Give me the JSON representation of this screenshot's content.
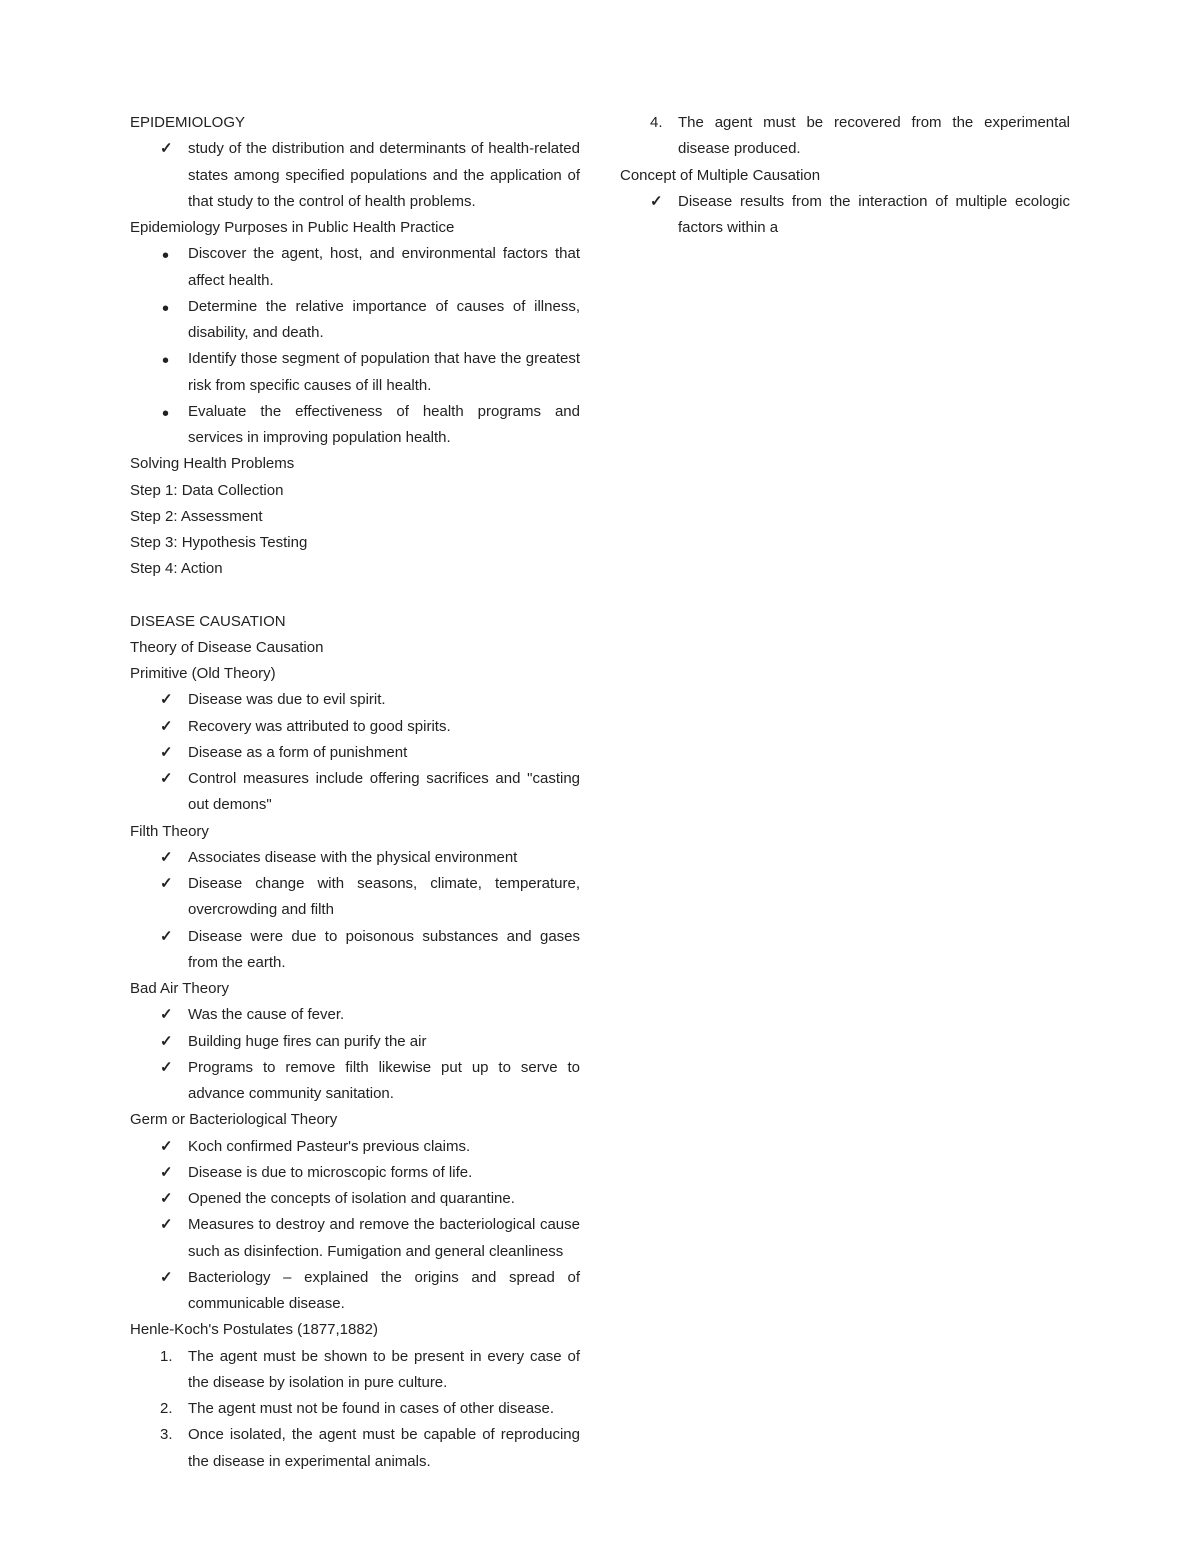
{
  "epidemiology": {
    "title": "EPIDEMIOLOGY",
    "def": "study of the distribution and determinants of health-related states among specified populations and the application of that study to the control of health problems."
  },
  "purposes": {
    "title": "Epidemiology Purposes in Public Health Practice",
    "items": [
      "Discover the agent, host, and environmental factors that affect health.",
      "Determine the relative importance of causes of illness, disability, and death.",
      "Identify those segment of population that have the greatest risk from specific causes of ill health.",
      "Evaluate the effectiveness of health programs and services in improving population health."
    ]
  },
  "solving": {
    "title": "Solving Health Problems",
    "steps": [
      "Step 1: Data Collection",
      "Step 2: Assessment",
      "Step 3: Hypothesis Testing",
      "Step 4: Action"
    ]
  },
  "causation": {
    "title": "DISEASE CAUSATION",
    "sub": "Theory of Disease Causation"
  },
  "primitive": {
    "title": "Primitive (Old Theory)",
    "items": [
      "Disease was due to evil spirit.",
      "Recovery was attributed to good spirits.",
      "Disease as a form of punishment",
      "Control measures include offering sacrifices and \"casting out demons\""
    ]
  },
  "filth": {
    "title": "Filth Theory",
    "items": [
      "Associates disease with the physical environment",
      "Disease change with seasons, climate, temperature, overcrowding and filth",
      "Disease were due to poisonous substances and gases from the earth."
    ]
  },
  "badair": {
    "title": "Bad Air Theory",
    "items": [
      "Was the cause of fever.",
      "Building huge fires can purify the air",
      "Programs to remove filth likewise put up to serve to advance community sanitation."
    ]
  },
  "germ": {
    "title": "Germ or Bacteriological Theory",
    "items": [
      "Koch confirmed Pasteur's previous claims.",
      "Disease is due to microscopic forms of life.",
      "Opened the concepts of isolation and quarantine.",
      "Measures to destroy and remove the bacteriological cause such as disinfection. Fumigation and general cleanliness",
      "Bacteriology – explained the origins and spread of communicable disease."
    ]
  },
  "postulates": {
    "title": "Henle-Koch's Postulates (1877,1882)",
    "items": [
      "The agent must be shown to be present in every case of the disease by isolation in pure culture.",
      "The agent must not be found in cases of other disease.",
      "Once isolated, the agent must be capable of reproducing the disease in experimental animals.",
      "The agent must be recovered from the experimental disease produced."
    ]
  },
  "multiple": {
    "title": "Concept of Multiple Causation",
    "items": [
      "Disease results from the interaction of multiple ecologic factors within a"
    ]
  }
}
